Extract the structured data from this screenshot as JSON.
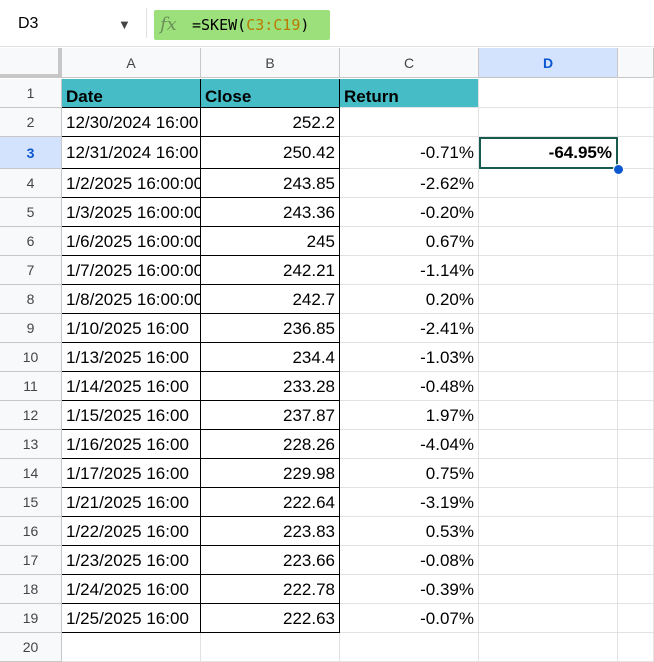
{
  "formula_bar": {
    "name_box": "D3",
    "fx_icon": "fx-icon",
    "formula_prefix": "=SKEW(",
    "formula_range": "C3:C19",
    "formula_suffix": ")"
  },
  "columns": [
    "A",
    "B",
    "C",
    "D"
  ],
  "selected_cell": "D3",
  "headers": [
    "Date",
    "Close",
    "Return"
  ],
  "rows": [
    {
      "n": "1",
      "a": "Date",
      "b": "Close",
      "c": "Return",
      "d": ""
    },
    {
      "n": "2",
      "a": "12/30/2024 16:00",
      "b": "252.2",
      "c": "",
      "d": ""
    },
    {
      "n": "3",
      "a": "12/31/2024 16:00",
      "b": "250.42",
      "c": "-0.71%",
      "d": "-64.95%"
    },
    {
      "n": "4",
      "a": "1/2/2025 16:00:00",
      "b": "243.85",
      "c": "-2.62%",
      "d": ""
    },
    {
      "n": "5",
      "a": "1/3/2025 16:00:00",
      "b": "243.36",
      "c": "-0.20%",
      "d": ""
    },
    {
      "n": "6",
      "a": "1/6/2025 16:00:00",
      "b": "245",
      "c": "0.67%",
      "d": ""
    },
    {
      "n": "7",
      "a": "1/7/2025 16:00:00",
      "b": "242.21",
      "c": "-1.14%",
      "d": ""
    },
    {
      "n": "8",
      "a": "1/8/2025 16:00:00",
      "b": "242.7",
      "c": "0.20%",
      "d": ""
    },
    {
      "n": "9",
      "a": "1/10/2025 16:00",
      "b": "236.85",
      "c": "-2.41%",
      "d": ""
    },
    {
      "n": "10",
      "a": "1/13/2025 16:00",
      "b": "234.4",
      "c": "-1.03%",
      "d": ""
    },
    {
      "n": "11",
      "a": "1/14/2025 16:00",
      "b": "233.28",
      "c": "-0.48%",
      "d": ""
    },
    {
      "n": "12",
      "a": "1/15/2025 16:00",
      "b": "237.87",
      "c": "1.97%",
      "d": ""
    },
    {
      "n": "13",
      "a": "1/16/2025 16:00",
      "b": "228.26",
      "c": "-4.04%",
      "d": ""
    },
    {
      "n": "14",
      "a": "1/17/2025 16:00",
      "b": "229.98",
      "c": "0.75%",
      "d": ""
    },
    {
      "n": "15",
      "a": "1/21/2025 16:00",
      "b": "222.64",
      "c": "-3.19%",
      "d": ""
    },
    {
      "n": "16",
      "a": "1/22/2025 16:00",
      "b": "223.83",
      "c": "0.53%",
      "d": ""
    },
    {
      "n": "17",
      "a": "1/23/2025 16:00",
      "b": "223.66",
      "c": "-0.08%",
      "d": ""
    },
    {
      "n": "18",
      "a": "1/24/2025 16:00",
      "b": "222.78",
      "c": "-0.39%",
      "d": ""
    },
    {
      "n": "19",
      "a": "1/25/2025 16:00",
      "b": "222.63",
      "c": "-0.07%",
      "d": ""
    },
    {
      "n": "20",
      "a": "",
      "b": "",
      "c": "",
      "d": ""
    }
  ],
  "colors": {
    "header_fill": "#46bdc6",
    "selection": "#0b57d0",
    "fx_highlight": "#9be07a"
  }
}
